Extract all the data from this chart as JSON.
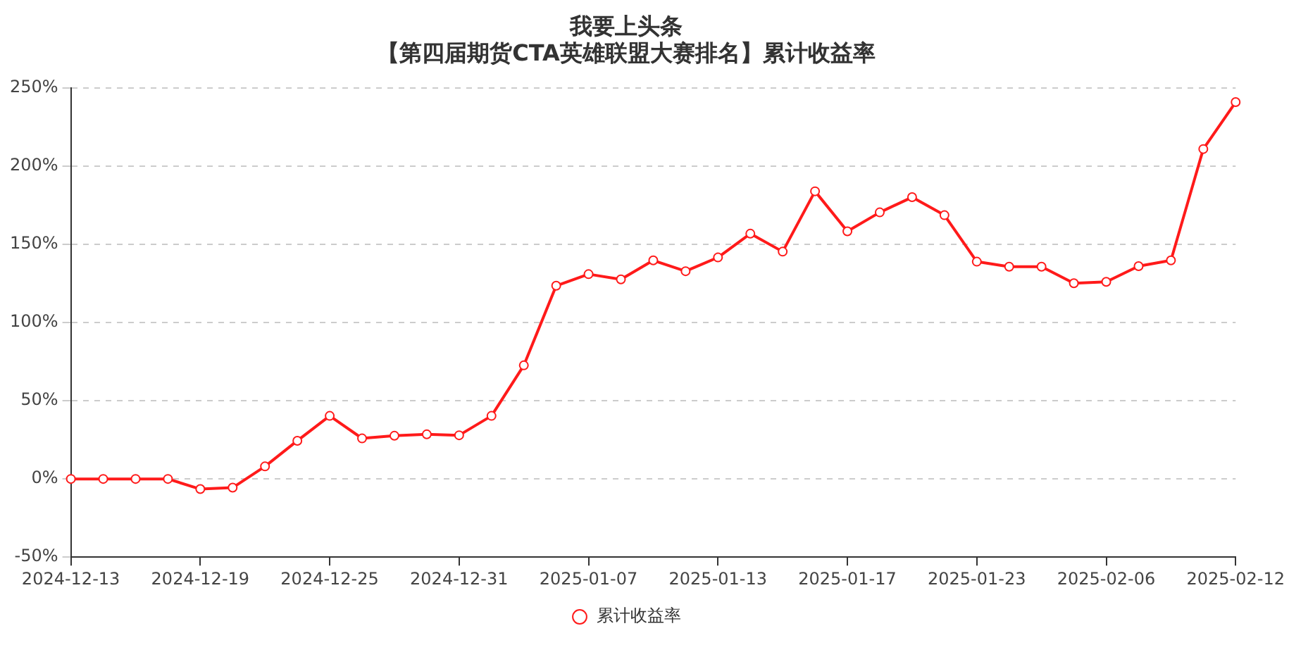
{
  "chart_data": {
    "type": "line",
    "title": [
      "我要上头条",
      "【第四届期货CTA英雄联盟大赛排名】累计收益率"
    ],
    "categories": [
      "2024-12-13",
      null,
      null,
      null,
      "2024-12-19",
      null,
      null,
      null,
      "2024-12-25",
      null,
      null,
      null,
      "2024-12-31",
      null,
      null,
      null,
      "2025-01-07",
      null,
      null,
      null,
      "2025-01-13",
      null,
      null,
      null,
      "2025-01-17",
      null,
      null,
      null,
      "2025-01-23",
      null,
      null,
      null,
      "2025-02-06",
      null,
      null,
      null,
      "2025-02-12"
    ],
    "series": [
      {
        "name": "累计收益率",
        "color": "#ff1a1a",
        "values": [
          0,
          0,
          0,
          0,
          -6.5,
          -5.6,
          8,
          24.4,
          40.3,
          25.9,
          27.6,
          28.5,
          27.9,
          40.3,
          72.6,
          123.5,
          130.9,
          127.6,
          139.7,
          132.8,
          141.6,
          156.8,
          145.3,
          183.9,
          158.3,
          170.4,
          180.1,
          168.6,
          138.9,
          135.7,
          135.7,
          125.1,
          126,
          136,
          139.7,
          210.9,
          240.9
        ]
      }
    ],
    "ylim": [
      -50,
      250
    ],
    "yticks": [
      {
        "value": -50,
        "label": "-50%"
      },
      {
        "value": 0,
        "label": "0%"
      },
      {
        "value": 50,
        "label": "50%"
      },
      {
        "value": 100,
        "label": "100%"
      },
      {
        "value": 150,
        "label": "150%"
      },
      {
        "value": 200,
        "label": "200%"
      },
      {
        "value": 250,
        "label": "250%"
      }
    ],
    "grid": "y",
    "legend": "bottom",
    "marker": "circle",
    "line_style": "solid"
  }
}
